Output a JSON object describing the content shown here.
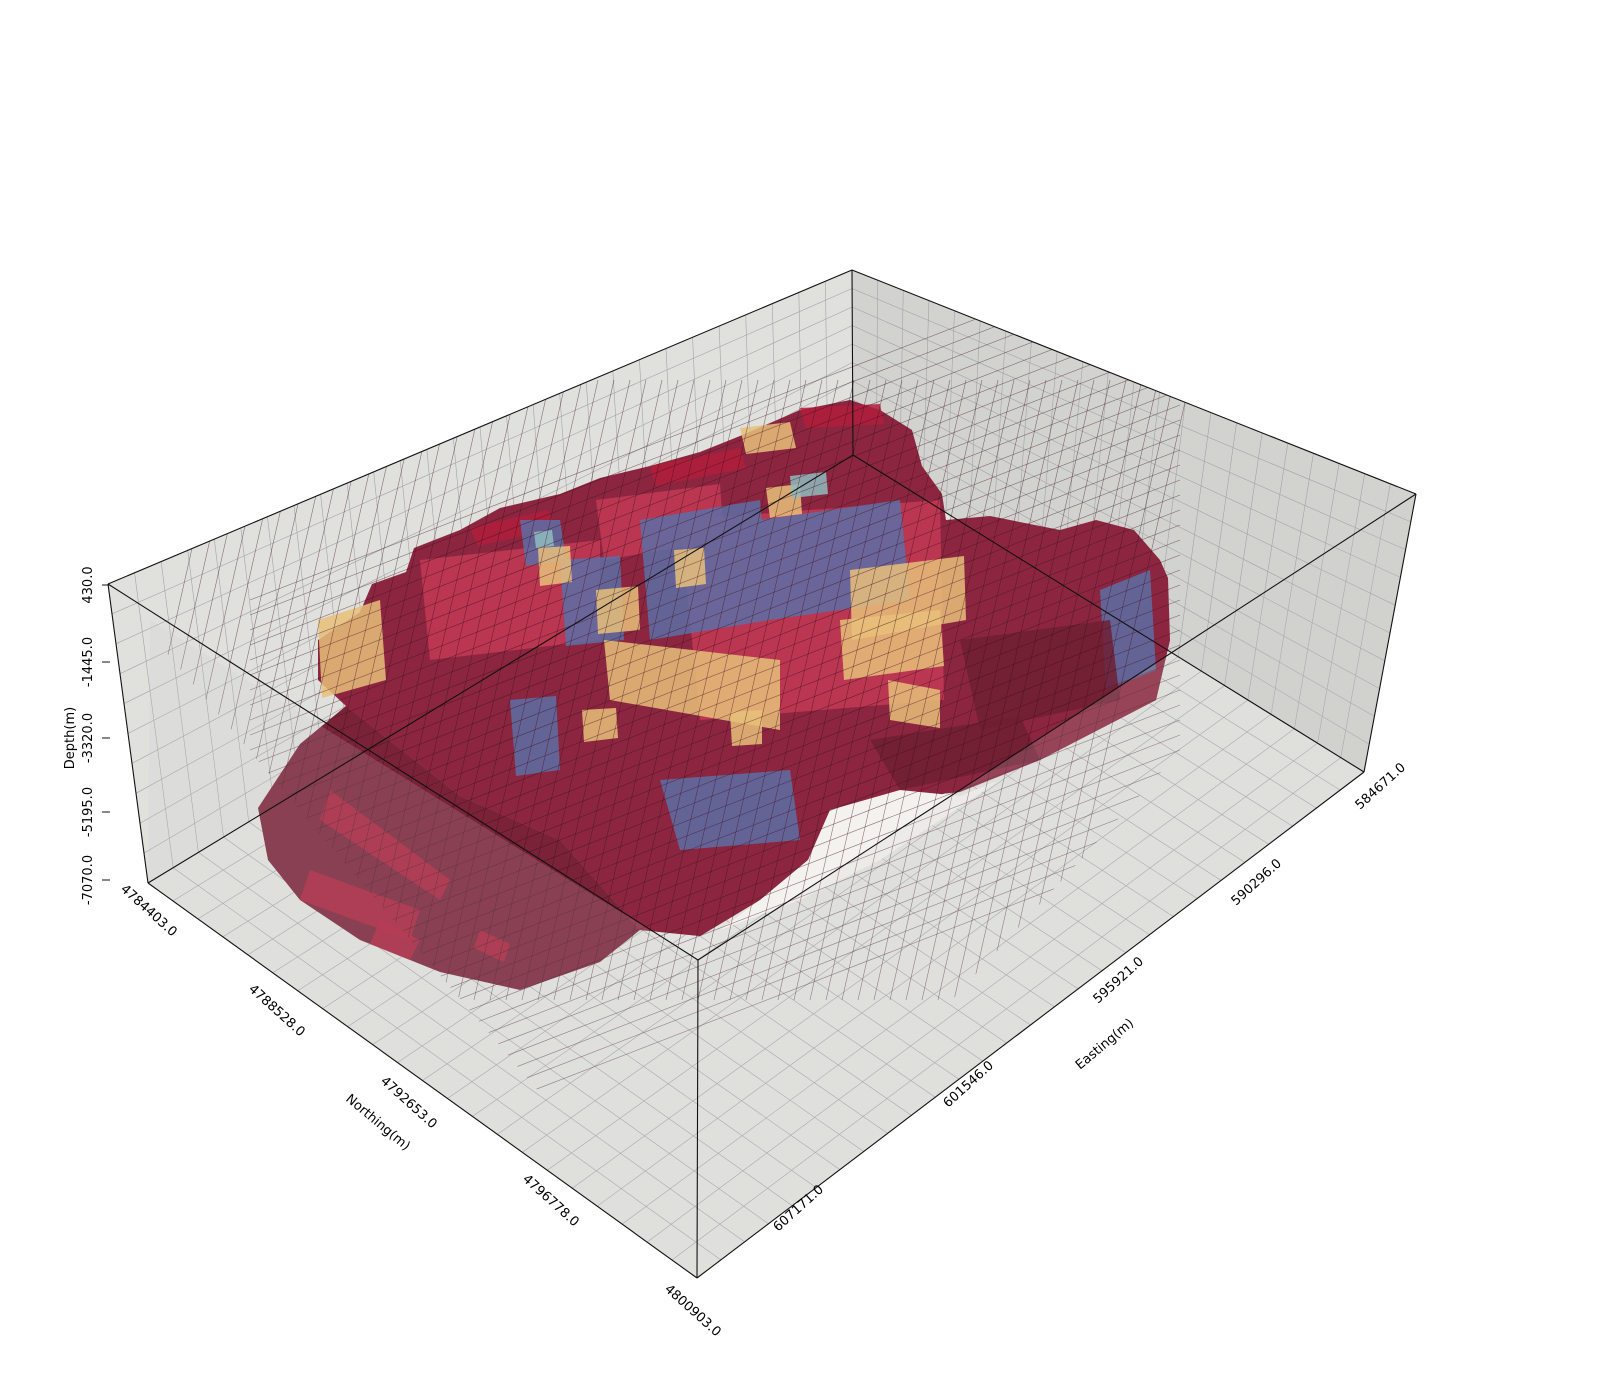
{
  "axes": {
    "depth": {
      "title": "Depth(m)",
      "ticks": [
        "430.0",
        "-1445.0",
        "-3320.0",
        "-5195.0",
        "-7070.0"
      ]
    },
    "northing": {
      "title": "Northing(m)",
      "ticks": [
        "4784403.0",
        "4788528.0",
        "4792653.0",
        "4796778.0",
        "4800903.0"
      ]
    },
    "easting": {
      "title": "Easting(m)",
      "ticks": [
        "584671.0",
        "590296.0",
        "595921.0",
        "601546.0",
        "607171.0"
      ]
    }
  },
  "colors": {
    "background": "#ffffff",
    "box_face": "#d9d9d6",
    "grid_line": "#9a9a9a",
    "edge_line": "#000000",
    "rock_dark": "#6e1f33",
    "rock_medium": "#9b2a44",
    "rock_bright": "#b01e3c",
    "rock_pink": "#c23a55",
    "inclusion_blue": "#5d6fa6",
    "inclusion_tan": "#e8c07a",
    "inclusion_cyan": "#8fbcc0"
  },
  "legend": null
}
